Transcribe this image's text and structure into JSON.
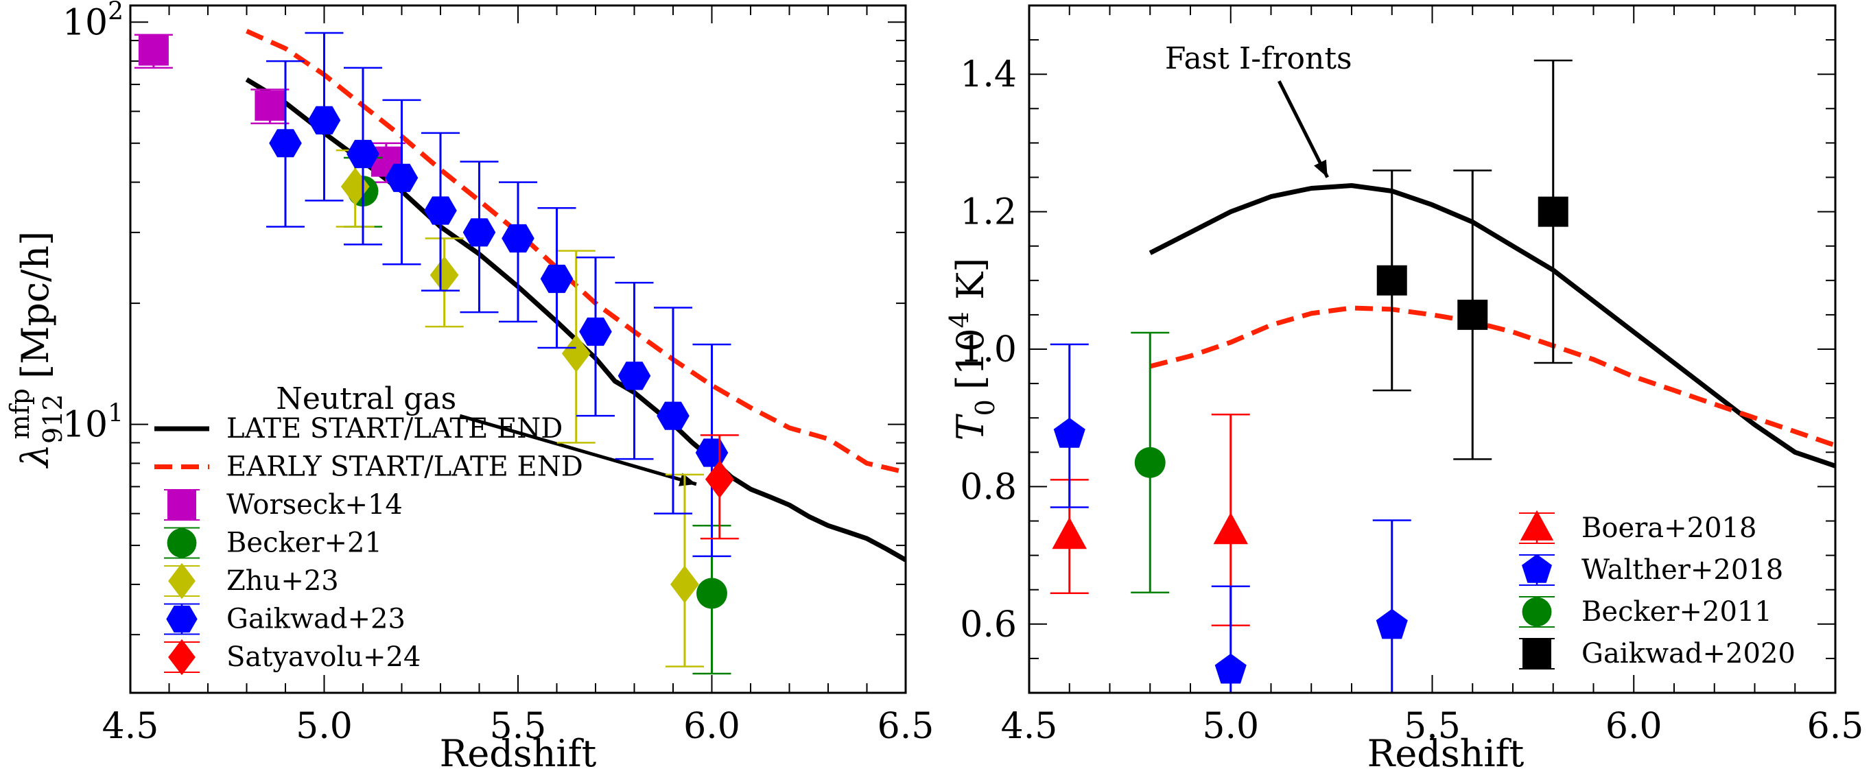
{
  "chart_data": [
    {
      "type": "scatter",
      "xscale": "linear",
      "yscale": "log",
      "xlim": [
        4.5,
        6.5
      ],
      "ylim": [
        2.15,
        110
      ],
      "xticks": [
        4.5,
        5.0,
        5.5,
        6.0,
        6.5
      ],
      "xtick_labels": [
        "4.5",
        "5.0",
        "5.5",
        "6.0",
        "6.5"
      ],
      "yticks": [
        10,
        100
      ],
      "xlabel": "Redshift",
      "ylabel": {
        "symbol": "λ",
        "sub": "912",
        "sup": "mfp",
        "unit": "[Mpc/h]"
      },
      "ytick_labels": [
        {
          "base": "10",
          "exp": "1",
          "value": 10
        },
        {
          "base": "10",
          "exp": "2",
          "value": 100
        }
      ],
      "lines": [
        {
          "name": "LATE START/LATE END",
          "color": "#000000",
          "dash": "solid",
          "x": [
            4.8,
            4.9,
            5.0,
            5.1,
            5.2,
            5.3,
            5.4,
            5.5,
            5.6,
            5.7,
            5.75,
            5.8,
            5.9,
            5.95,
            6.0,
            6.05,
            6.1,
            6.15,
            6.2,
            6.25,
            6.3,
            6.35,
            6.4,
            6.45,
            6.5
          ],
          "y": [
            72,
            63,
            53,
            45,
            38,
            31,
            26.5,
            22,
            18,
            14.6,
            12.8,
            12,
            10,
            9,
            8.2,
            7.4,
            6.9,
            6.6,
            6.3,
            5.9,
            5.6,
            5.4,
            5.2,
            4.9,
            4.6
          ]
        },
        {
          "name": "EARLY START/LATE END",
          "color": "#ff2200",
          "dash": "dashed",
          "x": [
            4.8,
            4.9,
            5.0,
            5.1,
            5.2,
            5.3,
            5.4,
            5.5,
            5.6,
            5.7,
            5.8,
            5.9,
            6.0,
            6.1,
            6.2,
            6.3,
            6.4,
            6.45,
            6.5
          ],
          "y": [
            95,
            86,
            74,
            62,
            52,
            43,
            36,
            30,
            24.5,
            20,
            17,
            14.5,
            12.5,
            11,
            9.8,
            9.2,
            8.0,
            7.8,
            7.6
          ]
        }
      ],
      "series": [
        {
          "name": "Worseck+14",
          "color": "#bf00bf",
          "marker": "square",
          "points": [
            {
              "x": 4.56,
              "y": 85,
              "lo": 77,
              "hi": 93
            },
            {
              "x": 4.86,
              "y": 62,
              "lo": 56,
              "hi": 68
            },
            {
              "x": 5.16,
              "y": 45,
              "lo": 40,
              "hi": 50
            }
          ]
        },
        {
          "name": "Becker+21",
          "color": "#008000",
          "marker": "circle",
          "points": [
            {
              "x": 5.1,
              "y": 38,
              "lo": 31,
              "hi": 46
            },
            {
              "x": 6.0,
              "y": 3.8,
              "lo": 2.4,
              "hi": 5.6
            }
          ]
        },
        {
          "name": "Zhu+23",
          "color": "#bfbf00",
          "marker": "diamond",
          "points": [
            {
              "x": 5.08,
              "y": 39,
              "lo": 31,
              "hi": 48
            },
            {
              "x": 5.31,
              "y": 23.5,
              "lo": 17.5,
              "hi": 29
            },
            {
              "x": 5.65,
              "y": 15,
              "lo": 9.0,
              "hi": 27
            },
            {
              "x": 5.93,
              "y": 4.0,
              "lo": 2.5,
              "hi": 7.5
            }
          ]
        },
        {
          "name": "Gaikwad+23",
          "color": "#0000ff",
          "marker": "hexagon",
          "points": [
            {
              "x": 4.9,
              "y": 50,
              "lo": 31,
              "hi": 80
            },
            {
              "x": 5.0,
              "y": 57,
              "lo": 36,
              "hi": 94
            },
            {
              "x": 5.1,
              "y": 47,
              "lo": 28,
              "hi": 77
            },
            {
              "x": 5.2,
              "y": 41,
              "lo": 25,
              "hi": 64
            },
            {
              "x": 5.3,
              "y": 34,
              "lo": 21.5,
              "hi": 53
            },
            {
              "x": 5.4,
              "y": 30,
              "lo": 19,
              "hi": 45
            },
            {
              "x": 5.5,
              "y": 29,
              "lo": 18,
              "hi": 40
            },
            {
              "x": 5.6,
              "y": 23,
              "lo": 15.5,
              "hi": 34.5
            },
            {
              "x": 5.7,
              "y": 17,
              "lo": 10.5,
              "hi": 26
            },
            {
              "x": 5.8,
              "y": 13.2,
              "lo": 8.2,
              "hi": 22.5
            },
            {
              "x": 5.9,
              "y": 10.5,
              "lo": 6.0,
              "hi": 19.5
            },
            {
              "x": 6.0,
              "y": 8.5,
              "lo": 4.7,
              "hi": 15.8
            }
          ]
        },
        {
          "name": "Satyavolu+24",
          "color": "#ff0000",
          "marker": "diamond",
          "points": [
            {
              "x": 6.02,
              "y": 7.3,
              "lo": 5.2,
              "hi": 9.4
            }
          ]
        }
      ],
      "annotation": {
        "text": "Neutral gas",
        "arrow_from": [
          5.35,
          10.5
        ],
        "arrow_to": [
          5.96,
          7.1
        ]
      },
      "legend_position": "lower-left"
    },
    {
      "type": "scatter",
      "xscale": "linear",
      "yscale": "linear",
      "xlim": [
        4.5,
        6.5
      ],
      "ylim": [
        0.5,
        1.5
      ],
      "xticks": [
        4.5,
        5.0,
        5.5,
        6.0,
        6.5
      ],
      "xtick_labels": [
        "4.5",
        "5.0",
        "5.5",
        "6.0",
        "6.5"
      ],
      "yticks": [
        0.6,
        0.8,
        1.0,
        1.2,
        1.4
      ],
      "ytick_labels": [
        "0.6",
        "0.8",
        "1.0",
        "1.2",
        "1.4"
      ],
      "xlabel": "Redshift",
      "ylabel": {
        "symbol": "T",
        "sub": "0",
        "unit_pre": "[10",
        "unit_sup": "4",
        "unit_post": " K]"
      },
      "lines": [
        {
          "name": "LATE START/LATE END",
          "color": "#000000",
          "dash": "solid",
          "x": [
            4.8,
            4.9,
            5.0,
            5.1,
            5.2,
            5.3,
            5.4,
            5.5,
            5.6,
            5.7,
            5.8,
            5.9,
            6.0,
            6.1,
            6.2,
            6.3,
            6.4,
            6.5
          ],
          "y": [
            1.14,
            1.17,
            1.2,
            1.222,
            1.234,
            1.238,
            1.23,
            1.21,
            1.185,
            1.15,
            1.115,
            1.07,
            1.025,
            0.98,
            0.935,
            0.89,
            0.85,
            0.83
          ]
        },
        {
          "name": "EARLY START/LATE END",
          "color": "#ff2200",
          "dash": "dashed",
          "x": [
            4.8,
            4.9,
            5.0,
            5.1,
            5.2,
            5.3,
            5.4,
            5.5,
            5.6,
            5.7,
            5.8,
            5.9,
            6.0,
            6.1,
            6.2,
            6.3,
            6.4,
            6.5
          ],
          "y": [
            0.975,
            0.99,
            1.01,
            1.035,
            1.052,
            1.06,
            1.058,
            1.05,
            1.04,
            1.025,
            1.005,
            0.985,
            0.96,
            0.94,
            0.92,
            0.9,
            0.88,
            0.86
          ]
        }
      ],
      "series": [
        {
          "name": "Boera+2018",
          "color": "#ff0000",
          "marker": "triangle",
          "points": [
            {
              "x": 4.6,
              "y": 0.728,
              "lo": 0.645,
              "hi": 0.81
            },
            {
              "x": 5.0,
              "y": 0.735,
              "lo": 0.598,
              "hi": 0.905
            }
          ]
        },
        {
          "name": "Walther+2018",
          "color": "#0000ff",
          "marker": "pentagon",
          "points": [
            {
              "x": 4.6,
              "y": 0.876,
              "lo": 0.77,
              "hi": 1.007
            },
            {
              "x": 5.0,
              "y": 0.533,
              "lo": 0.49,
              "hi": 0.655
            },
            {
              "x": 5.4,
              "y": 0.598,
              "lo": 0.49,
              "hi": 0.751
            }
          ]
        },
        {
          "name": "Becker+2011",
          "color": "#008000",
          "marker": "circle",
          "points": [
            {
              "x": 4.8,
              "y": 0.835,
              "lo": 0.646,
              "hi": 1.024
            }
          ]
        },
        {
          "name": "Gaikwad+2020",
          "color": "#000000",
          "marker": "square",
          "points": [
            {
              "x": 5.4,
              "y": 1.1,
              "lo": 0.94,
              "hi": 1.26
            },
            {
              "x": 5.6,
              "y": 1.05,
              "lo": 0.84,
              "hi": 1.26
            },
            {
              "x": 5.8,
              "y": 1.2,
              "lo": 0.98,
              "hi": 1.42
            }
          ]
        }
      ],
      "annotation": {
        "text": "Fast I-fronts",
        "arrow_from": [
          5.12,
          1.39
        ],
        "arrow_to": [
          5.24,
          1.25
        ]
      },
      "legend_position": "lower-right"
    }
  ]
}
